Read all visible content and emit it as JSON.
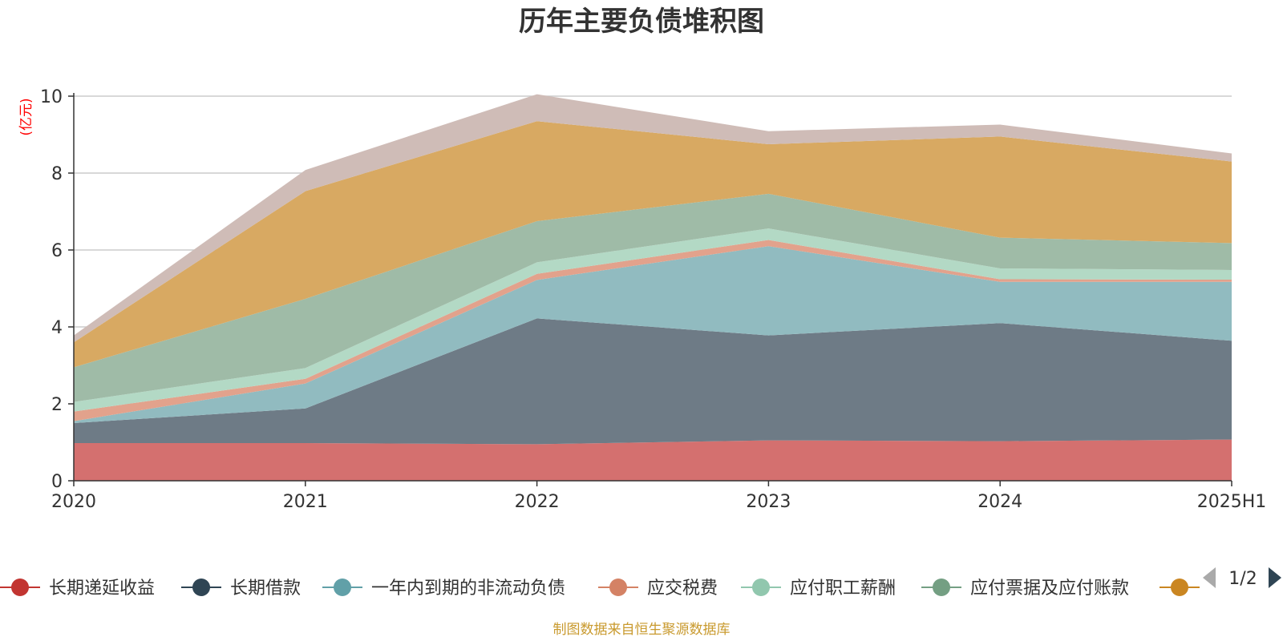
{
  "chart_data": {
    "type": "area",
    "stacked": true,
    "title": "历年主要负债堆积图",
    "unit_label": "(亿元)",
    "x": [
      "2020",
      "2021",
      "2022",
      "2023",
      "2024",
      "2025H1"
    ],
    "ylim": [
      0,
      10
    ],
    "yticks": [
      "0",
      "2",
      "4",
      "6",
      "8",
      "10"
    ],
    "grid": true,
    "legend_position": "bottom",
    "series": [
      {
        "name": "长期递延收益",
        "color": "#c23531",
        "fill": "#d4706f",
        "values": [
          0.98,
          0.98,
          0.95,
          1.05,
          1.03,
          1.07
        ]
      },
      {
        "name": "长期借款",
        "color": "#2f4554",
        "fill": "#6e7b86",
        "values": [
          0.52,
          0.9,
          3.27,
          2.73,
          3.07,
          2.57
        ]
      },
      {
        "name": "一年内到期的非流动负债",
        "color": "#61a0a8",
        "fill": "#91bbc0",
        "values": [
          0.05,
          0.65,
          1.0,
          2.32,
          1.07,
          1.53
        ]
      },
      {
        "name": "应交税费",
        "color": "#d48265",
        "fill": "#e2a28c",
        "values": [
          0.25,
          0.12,
          0.16,
          0.16,
          0.07,
          0.06
        ]
      },
      {
        "name": "应付职工薪酬",
        "color": "#91c7ae",
        "fill": "#b3d9c5",
        "values": [
          0.25,
          0.28,
          0.3,
          0.3,
          0.28,
          0.25
        ]
      },
      {
        "name": "应付票据及应付账款",
        "color": "#749f83",
        "fill": "#9fbba7",
        "values": [
          0.9,
          1.8,
          1.07,
          0.9,
          0.8,
          0.7
        ]
      },
      {
        "name": "",
        "color": "#ca8622",
        "fill": "#d8a962",
        "values": [
          0.65,
          2.8,
          2.6,
          1.29,
          2.63,
          2.12
        ]
      },
      {
        "name": "",
        "color": "#bda29a",
        "fill": "#cfbcb7",
        "values": [
          0.18,
          0.55,
          0.7,
          0.34,
          0.31,
          0.21
        ]
      }
    ],
    "legend_visible": [
      "长期递延收益",
      "长期借款",
      "一年内到期的非流动负债",
      "应交税费",
      "应付职工薪酬",
      "应付票据及应付账款",
      ""
    ],
    "pager": "1/2"
  },
  "source_note": "制图数据来自恒生聚源数据库",
  "colors": {
    "axis": "#333333",
    "grid": "#cccccc",
    "pager_active": "#2f4554",
    "pager_inactive": "#aaaaaa"
  }
}
